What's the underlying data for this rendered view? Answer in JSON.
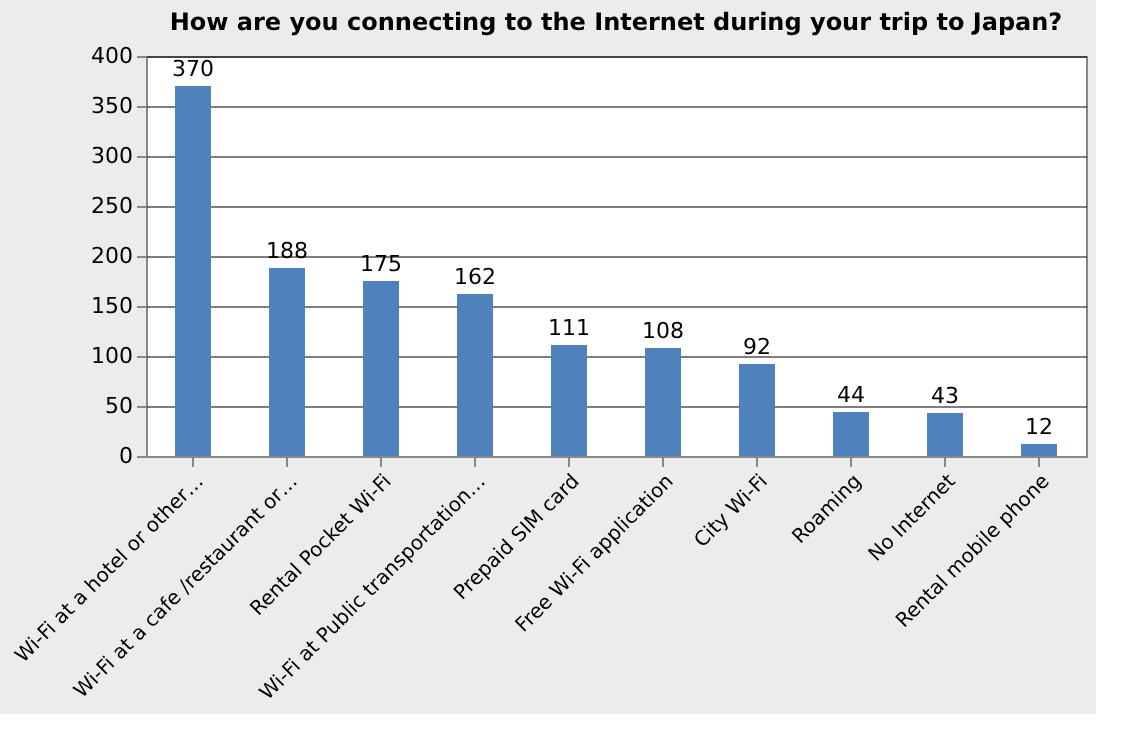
{
  "chart_data": {
    "type": "bar",
    "title": "How are you connecting to the Internet during your trip to Japan?",
    "categories": [
      "Wi-Fi at a hotel or other…",
      "Wi-Fi at a cafe /restaurant or…",
      "Rental Pocket Wi-Fi",
      "Wi-Fi at Public transportation…",
      "Prepaid SIM card",
      "Free Wi-Fi application",
      "City Wi-Fi",
      "Roaming",
      "No Internet",
      "Rental mobile phone"
    ],
    "values": [
      370,
      188,
      175,
      162,
      111,
      108,
      92,
      44,
      43,
      12
    ],
    "color": "#4f81bd",
    "ylim": [
      0,
      400
    ],
    "yticks": [
      0,
      50,
      100,
      150,
      200,
      250,
      300,
      350,
      400
    ],
    "grid": "y",
    "data_labels": true
  }
}
